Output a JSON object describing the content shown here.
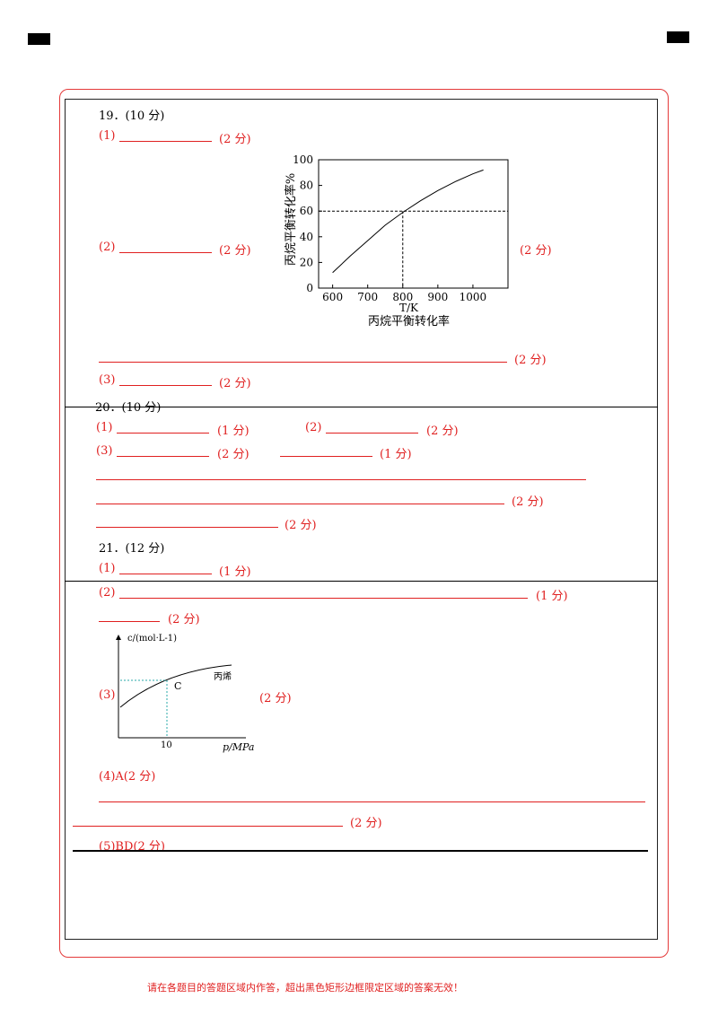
{
  "q19": {
    "header": "19．(10 分)",
    "p1_label": "(1)",
    "p1_score": "(2 分)",
    "p2_label": "(2)",
    "p2_score": "(2 分)",
    "p2_score_right": "(2 分)",
    "long_score": "(2 分)",
    "p3_label": "(3)",
    "p3_score": "(2 分)"
  },
  "q20": {
    "header": "20．(10 分)",
    "p1_label": "(1)",
    "p1_score": "(1 分)",
    "p2_label": "(2)",
    "p2_score": "(2 分)",
    "p3_label": "(3)",
    "p3_score": "(2 分)",
    "p3b_score": "(1 分)",
    "line2_score": "(2 分)",
    "line3_score": "(2 分)"
  },
  "q21": {
    "header": "21．(12 分)",
    "p1_label": "(1)",
    "p1_score": "(1 分)",
    "p2_label": "(2)",
    "p2_score": "(1 分)",
    "p2b_score": "(2 分)",
    "p3_label": "(3)",
    "p3_score": "(2 分)",
    "p4_text": "(4)A(2 分)",
    "p4_score": "(2 分)",
    "p5_text": "(5)BD(2 分)"
  },
  "chart_data": [
    {
      "type": "line",
      "title": "丙烷平衡转化率",
      "xlabel": "T/K",
      "ylabel": "丙烷平衡转化率%",
      "xlim": [
        560,
        1100
      ],
      "ylim": [
        0,
        100
      ],
      "xticks": [
        600,
        700,
        800,
        900,
        1000
      ],
      "yticks": [
        0,
        20,
        40,
        60,
        80,
        100
      ],
      "series": [
        {
          "x": [
            600,
            650,
            700,
            750,
            800,
            850,
            900,
            950,
            1000,
            1030
          ],
          "y": [
            12,
            25,
            37,
            49,
            59,
            68,
            76,
            83,
            89,
            92
          ]
        }
      ],
      "reference": {
        "x": 800,
        "y": 60
      }
    },
    {
      "type": "line",
      "ylabel": "c/(mol·L-1)",
      "xlabel": "p/MPa",
      "xticks": [
        10
      ],
      "series": [
        {
          "name": "丙烯"
        }
      ],
      "point_label": "C"
    }
  ],
  "footer": "请在各题目的答题区域内作答，超出黑色矩形边框限定区域的答案无效！"
}
